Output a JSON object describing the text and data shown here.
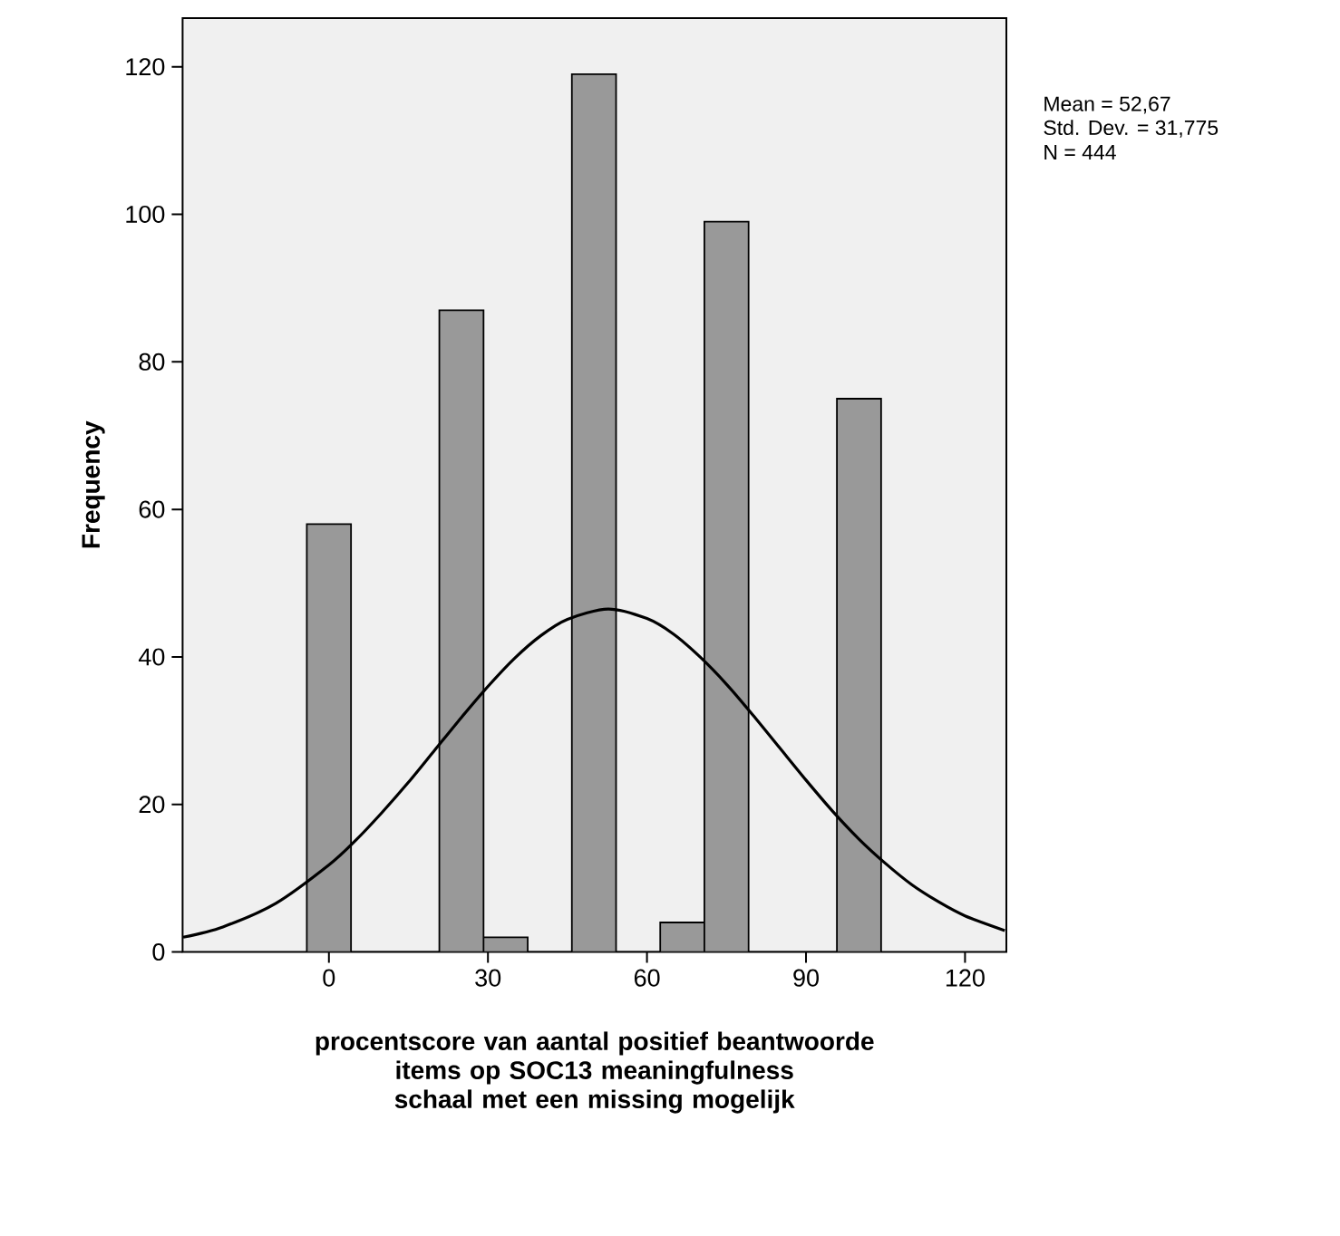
{
  "chart_data": {
    "type": "histogram",
    "bins": [
      -4.17,
      4.17,
      12.5,
      20.83,
      29.17,
      37.5,
      45.83,
      54.17,
      62.5,
      70.83,
      79.17,
      87.5,
      95.83,
      104.17
    ],
    "values": [
      58,
      0,
      0,
      87,
      2,
      0,
      119,
      0,
      4,
      99,
      0,
      0,
      75
    ],
    "color": "#999999",
    "series": [
      {
        "type": "line",
        "color": "#000000",
        "x": [
          -27.5,
          -20,
          -10,
          0,
          5,
          10,
          15,
          20,
          25,
          30,
          35,
          40,
          45,
          52.67,
          60,
          65,
          70,
          75,
          80,
          85,
          90,
          95,
          100,
          105,
          110,
          115,
          120,
          127.5
        ],
        "values": [
          2,
          3.4,
          6.6,
          11.8,
          15.1,
          18.9,
          23,
          27.4,
          31.8,
          36,
          39.8,
          42.9,
          45.1,
          46.5,
          45.2,
          43.1,
          40,
          36.3,
          32.1,
          27.7,
          23.3,
          19.1,
          15.3,
          12,
          9.1,
          6.8,
          4.9,
          2.9
        ]
      }
    ],
    "xlabel": "procentscore van aantal positief beantwoorde items op SOC13 meaningfulness schaal met een missing mogelijk",
    "ylabel": "Frequency",
    "xlim": [
      -27.6,
      127.8
    ],
    "ylim": [
      0,
      126.6
    ],
    "xticks": [
      0,
      30,
      60,
      90,
      120
    ],
    "yticks": [
      0,
      20,
      40,
      60,
      80,
      100,
      120
    ],
    "annotations": [
      "Mean = 52,67",
      "Std. Dev. = 31,775",
      "N = 444"
    ],
    "grid": false
  }
}
